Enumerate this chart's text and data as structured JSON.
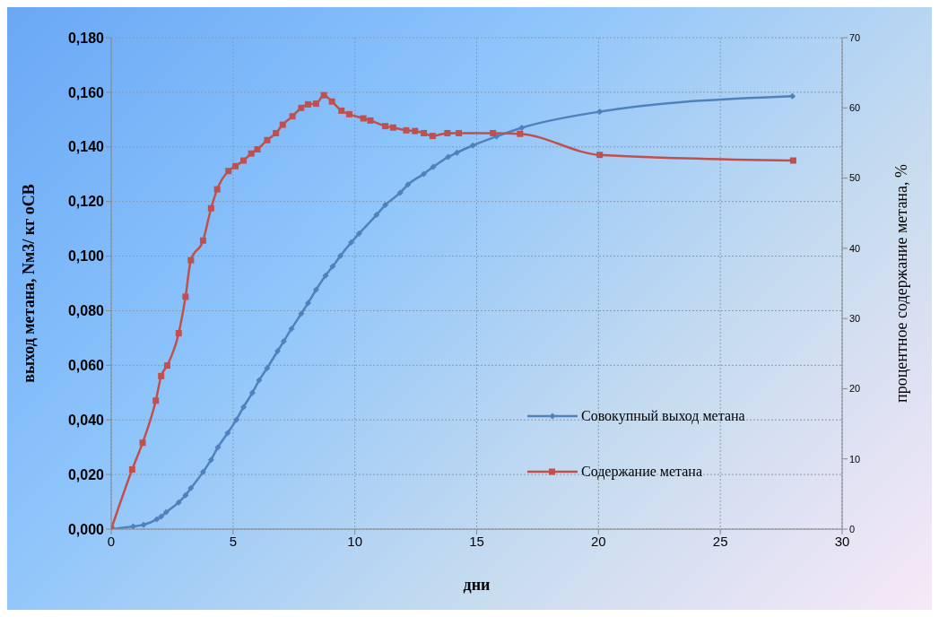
{
  "chart_data": {
    "type": "line",
    "xlabel": "дни",
    "ylabel": "выход метана, Nм3/ кг оСВ",
    "y2label": "процентное содержание метана, %",
    "xlim": [
      0,
      30
    ],
    "xticks": [
      0,
      5,
      10,
      15,
      20,
      25,
      30
    ],
    "ylim": [
      0,
      0.18
    ],
    "yticks": [
      {
        "value": 0,
        "label": "0,000"
      },
      {
        "value": 0.02,
        "label": "0,020"
      },
      {
        "value": 0.04,
        "label": "0,040"
      },
      {
        "value": 0.06,
        "label": "0,060"
      },
      {
        "value": 0.08,
        "label": "0,080"
      },
      {
        "value": 0.1,
        "label": "0,100"
      },
      {
        "value": 0.12,
        "label": "0,120"
      },
      {
        "value": 0.14,
        "label": "0,140"
      },
      {
        "value": 0.16,
        "label": "0,160"
      },
      {
        "value": 0.18,
        "label": "0,180"
      }
    ],
    "y2lim": [
      0,
      70
    ],
    "y2ticks": [
      0,
      10,
      20,
      30,
      40,
      50,
      60,
      70
    ],
    "grid": true,
    "legend": "bottom right",
    "line_style": "solid",
    "series": [
      {
        "name": "Совокупный выход метана",
        "color": "#4f81bd",
        "marker": "diamond",
        "x": [
          0,
          0.9,
          1.33,
          1.87,
          2.05,
          2.26,
          2.77,
          3.05,
          3.27,
          3.77,
          4.1,
          4.38,
          4.78,
          5.14,
          5.43,
          5.79,
          6.07,
          6.4,
          6.83,
          7.08,
          7.4,
          7.8,
          8.08,
          8.41,
          8.8,
          9.09,
          9.41,
          9.85,
          10.17,
          10.89,
          11.25,
          11.86,
          12.18,
          12.83,
          13.22,
          13.83,
          14.19,
          14.84,
          15.81,
          16.85,
          20.05,
          27.96
        ],
        "values": [
          0,
          0.001,
          0.0016,
          0.0036,
          0.0046,
          0.0062,
          0.0098,
          0.0124,
          0.015,
          0.0209,
          0.0254,
          0.03,
          0.0352,
          0.0401,
          0.0447,
          0.0499,
          0.0545,
          0.059,
          0.0652,
          0.0688,
          0.0734,
          0.0789,
          0.0828,
          0.0877,
          0.0929,
          0.0962,
          0.1001,
          0.105,
          0.1082,
          0.1151,
          0.1187,
          0.1232,
          0.1262,
          0.1301,
          0.1327,
          0.1363,
          0.1379,
          0.1405,
          0.1438,
          0.147,
          0.1529,
          0.1586
        ]
      },
      {
        "name": "Содержание метана",
        "color": "#c0504d",
        "marker": "square",
        "axis": "y2",
        "x": [
          0,
          0.86,
          1.29,
          1.83,
          2.05,
          2.3,
          2.77,
          3.05,
          3.27,
          3.77,
          4.1,
          4.35,
          4.81,
          5.1,
          5.43,
          5.75,
          6,
          6.4,
          6.76,
          7.04,
          7.44,
          7.8,
          8.08,
          8.41,
          8.73,
          9.06,
          9.45,
          9.77,
          10.35,
          10.64,
          11.25,
          11.57,
          12.11,
          12.47,
          12.83,
          13.19,
          13.8,
          14.27,
          15.67,
          16.78,
          20.05,
          27.99
        ],
        "values": [
          0,
          8.5,
          12.3,
          18.3,
          21.8,
          23.3,
          27.9,
          33.1,
          38.3,
          41.1,
          45.7,
          48.4,
          51,
          51.7,
          52.5,
          53.5,
          54.1,
          55.4,
          56.4,
          57.6,
          58.8,
          60,
          60.5,
          60.6,
          61.8,
          60.9,
          59.6,
          59.1,
          58.5,
          58.2,
          57.4,
          57.2,
          56.8,
          56.7,
          56.4,
          56,
          56.4,
          56.4,
          56.4,
          56.3,
          53.3,
          52.5
        ]
      }
    ]
  }
}
